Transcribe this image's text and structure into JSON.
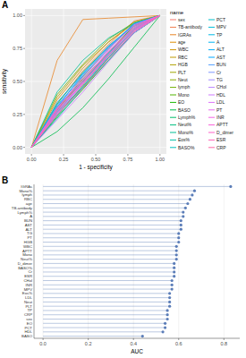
{
  "chart_data": [
    {
      "type": "line",
      "title": "A",
      "x_label": "1 - specificity",
      "y_label": "sensitivity",
      "legend_title": "name",
      "legend": "right",
      "grid": true,
      "xlim": [
        -0.05,
        1.05
      ],
      "ylim": [
        -0.05,
        1.05
      ],
      "xticks": [
        {
          "value": 0,
          "label": "0.00"
        },
        {
          "value": 0.25,
          "label": "0.25"
        },
        {
          "value": 0.5,
          "label": "0.50"
        },
        {
          "value": 0.75,
          "label": "0.75"
        },
        {
          "value": 1,
          "label": "1.00"
        }
      ],
      "yticks": [
        {
          "value": 0,
          "label": "0.00"
        },
        {
          "value": 0.25,
          "label": "0.25"
        },
        {
          "value": 0.5,
          "label": "0.50"
        },
        {
          "value": 0.75,
          "label": "0.75"
        },
        {
          "value": 1,
          "label": "1.00"
        }
      ],
      "x": [
        0,
        0.2,
        0.4,
        0.6,
        0.8,
        1
      ],
      "series": [
        {
          "name": "sex",
          "color": "#F8766D",
          "values": [
            0,
            0.25,
            0.45,
            0.68,
            0.87,
            1
          ]
        },
        {
          "name": "TB-antibody",
          "color": "#F07E4E",
          "values": [
            0,
            0.33,
            0.58,
            0.78,
            0.96,
            1
          ]
        },
        {
          "name": "IGRAs",
          "color": "#E88526",
          "values": [
            0,
            0.66,
            0.97,
            0.98,
            0.99,
            1
          ]
        },
        {
          "name": "age",
          "color": "#DC8D00",
          "values": [
            0,
            0.36,
            0.6,
            0.8,
            0.94,
            1
          ]
        },
        {
          "name": "WBC",
          "color": "#CF9400",
          "values": [
            0,
            0.3,
            0.5,
            0.72,
            0.93,
            1
          ]
        },
        {
          "name": "RBC",
          "color": "#C09B00",
          "values": [
            0,
            0.38,
            0.62,
            0.8,
            0.95,
            1
          ]
        },
        {
          "name": "HGB",
          "color": "#B0A100",
          "values": [
            0,
            0.28,
            0.54,
            0.75,
            0.93,
            1
          ]
        },
        {
          "name": "PLT",
          "color": "#9EA700",
          "values": [
            0,
            0.24,
            0.47,
            0.7,
            0.89,
            1
          ]
        },
        {
          "name": "Neut",
          "color": "#89AC00",
          "values": [
            0,
            0.27,
            0.45,
            0.68,
            0.9,
            1
          ]
        },
        {
          "name": "lymph",
          "color": "#72B000",
          "values": [
            0,
            0.4,
            0.63,
            0.82,
            0.95,
            1
          ]
        },
        {
          "name": "Mono",
          "color": "#53B400",
          "values": [
            0,
            0.29,
            0.52,
            0.72,
            0.92,
            1
          ]
        },
        {
          "name": "EO",
          "color": "#1EB800",
          "values": [
            0,
            0.23,
            0.44,
            0.66,
            0.87,
            1
          ]
        },
        {
          "name": "BASO",
          "color": "#00BB4B",
          "values": [
            0,
            0.12,
            0.3,
            0.52,
            0.76,
            1
          ]
        },
        {
          "name": "Lymph%",
          "color": "#00BD68",
          "values": [
            0,
            0.33,
            0.57,
            0.77,
            0.93,
            1
          ]
        },
        {
          "name": "Neut%",
          "color": "#00BF7F",
          "values": [
            0,
            0.31,
            0.5,
            0.71,
            0.93,
            1
          ]
        },
        {
          "name": "Mono%",
          "color": "#00C094",
          "values": [
            0,
            0.42,
            0.66,
            0.83,
            0.94,
            1
          ]
        },
        {
          "name": "Eos%",
          "color": "#00C1A7",
          "values": [
            0,
            0.26,
            0.46,
            0.69,
            0.89,
            1
          ]
        },
        {
          "name": "BASO%",
          "color": "#00C1B9",
          "values": [
            0,
            0.28,
            0.5,
            0.71,
            0.91,
            1
          ]
        },
        {
          "name": "PCT",
          "color": "#00BFCA",
          "values": [
            0,
            0.22,
            0.45,
            0.66,
            0.87,
            1
          ]
        },
        {
          "name": "MPV",
          "color": "#00BDD9",
          "values": [
            0,
            0.27,
            0.48,
            0.7,
            0.9,
            1
          ]
        },
        {
          "name": "TP",
          "color": "#00B9E6",
          "values": [
            0,
            0.24,
            0.46,
            0.68,
            0.87,
            1
          ]
        },
        {
          "name": "A",
          "color": "#00B4F1",
          "values": [
            0,
            0.34,
            0.56,
            0.76,
            0.94,
            1
          ]
        },
        {
          "name": "ALT",
          "color": "#00AEFA",
          "values": [
            0,
            0.32,
            0.54,
            0.75,
            0.94,
            1
          ]
        },
        {
          "name": "AST",
          "color": "#00A7FF",
          "values": [
            0,
            0.3,
            0.56,
            0.76,
            0.93,
            1
          ]
        },
        {
          "name": "BUN",
          "color": "#529EFF",
          "values": [
            0,
            0.31,
            0.55,
            0.77,
            0.92,
            1
          ]
        },
        {
          "name": "Cr",
          "color": "#7F96FF",
          "values": [
            0,
            0.27,
            0.51,
            0.72,
            0.9,
            1
          ]
        },
        {
          "name": "TG",
          "color": "#9F8CFF",
          "values": [
            0,
            0.3,
            0.53,
            0.74,
            0.93,
            1
          ]
        },
        {
          "name": "CHol",
          "color": "#B983FF",
          "values": [
            0,
            0.26,
            0.49,
            0.71,
            0.89,
            1
          ]
        },
        {
          "name": "HDL",
          "color": "#CD79FF",
          "values": [
            0,
            0.21,
            0.42,
            0.65,
            0.87,
            1
          ]
        },
        {
          "name": "LDL",
          "color": "#DD71FA",
          "values": [
            0,
            0.25,
            0.48,
            0.69,
            0.88,
            1
          ]
        },
        {
          "name": "PT",
          "color": "#E96AF1",
          "values": [
            0,
            0.29,
            0.53,
            0.75,
            0.93,
            1
          ]
        },
        {
          "name": "INR",
          "color": "#F365E6",
          "values": [
            0,
            0.28,
            0.48,
            0.7,
            0.89,
            1
          ]
        },
        {
          "name": "APTT",
          "color": "#FA62D9",
          "values": [
            0,
            0.3,
            0.51,
            0.73,
            0.91,
            1
          ]
        },
        {
          "name": "D_dimer",
          "color": "#FF61C9",
          "values": [
            0,
            0.27,
            0.5,
            0.73,
            0.9,
            1
          ]
        },
        {
          "name": "ESR",
          "color": "#FF63B8",
          "values": [
            0,
            0.29,
            0.49,
            0.7,
            0.92,
            1
          ]
        },
        {
          "name": "CRP",
          "color": "#FF67A5",
          "values": [
            0,
            0.25,
            0.45,
            0.67,
            0.88,
            1
          ]
        }
      ]
    },
    {
      "type": "lollipop",
      "title": "B",
      "x_label": "AUC",
      "orientation": "horizontal",
      "grid": true,
      "color": "#5B7DB8",
      "xlim": [
        -0.04,
        0.87
      ],
      "xticks": [
        {
          "value": 0,
          "label": "0.0"
        },
        {
          "value": 0.2,
          "label": "0.2"
        },
        {
          "value": 0.4,
          "label": "0.4"
        },
        {
          "value": 0.6,
          "label": "0.6"
        },
        {
          "value": 0.8,
          "label": "0.8"
        }
      ],
      "categories": [
        "IGRAs",
        "Mono%",
        "lymph",
        "RBC",
        "age",
        "TB-antibody",
        "Lymph%",
        "A",
        "BUN",
        "AST",
        "ALT",
        "TG",
        "PT",
        "HGB",
        "WBC",
        "APTT",
        "Mono",
        "Neut%",
        "D_dimer",
        "BASO%",
        "Cr",
        "ESR",
        "CHol",
        "INR",
        "MPV",
        "Eos%",
        "LDL",
        "Neut",
        "PLT",
        "TP",
        "CRP",
        "sex",
        "EO",
        "PCT",
        "HDL",
        "BASO"
      ],
      "values": [
        0.83,
        0.67,
        0.66,
        0.65,
        0.64,
        0.63,
        0.62,
        0.62,
        0.61,
        0.61,
        0.61,
        0.6,
        0.6,
        0.6,
        0.59,
        0.59,
        0.59,
        0.59,
        0.58,
        0.58,
        0.58,
        0.58,
        0.57,
        0.57,
        0.57,
        0.56,
        0.56,
        0.56,
        0.56,
        0.55,
        0.55,
        0.55,
        0.54,
        0.54,
        0.53,
        0.44
      ]
    }
  ]
}
